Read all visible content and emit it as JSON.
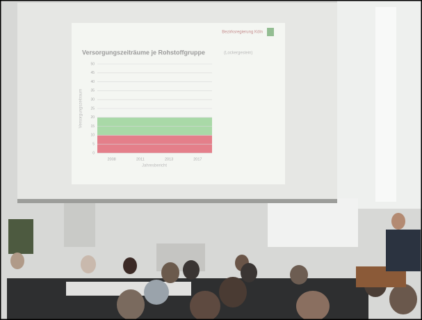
{
  "slide": {
    "header": "Bezirksregierung Köln"
  },
  "chart_data": {
    "type": "band",
    "title": "Versorgungszeiträume je Rohstoffgruppe",
    "subtitle": "(Lockergestein)",
    "y_label": "Versorgungszeitraum",
    "x_label": "Jahresbericht",
    "categories": [
      "2008",
      "2011",
      "2013",
      "2017"
    ],
    "bands": [
      {
        "color": "#e06a78",
        "range": [
          0,
          10
        ]
      },
      {
        "color": "#9bd39a",
        "range": [
          10,
          20
        ]
      }
    ],
    "ylim": [
      0,
      50
    ],
    "yticks": [
      0,
      5,
      10,
      15,
      20,
      25,
      30,
      35,
      40,
      45,
      50
    ],
    "grid": true
  }
}
